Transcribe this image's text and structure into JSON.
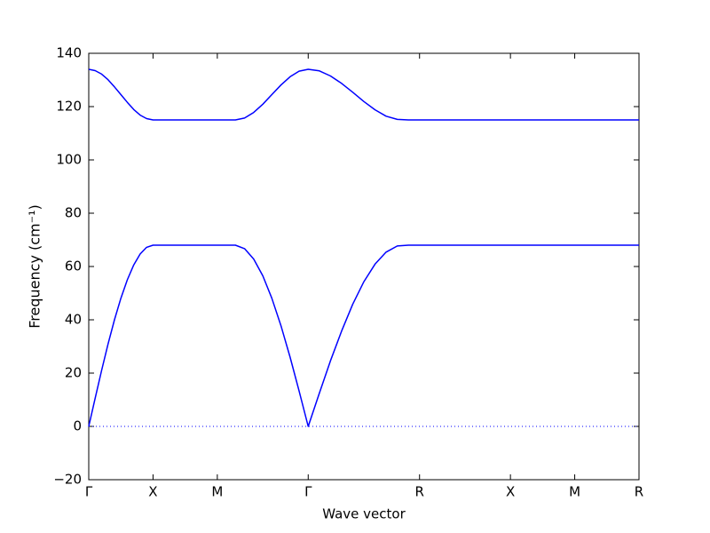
{
  "chart_data": {
    "type": "line",
    "xlabel": "Wave vector",
    "ylabel": "Frequency (cm⁻¹)",
    "x": [
      0,
      0.05,
      0.1,
      0.15,
      0.2,
      0.25,
      0.3,
      0.35,
      0.4,
      0.45,
      0.5,
      1.0,
      1.071,
      1.141,
      1.212,
      1.283,
      1.354,
      1.424,
      1.495,
      1.566,
      1.636,
      1.707,
      1.794,
      1.88,
      1.967,
      2.053,
      2.14,
      2.227,
      2.313,
      2.4,
      2.486,
      2.573,
      3.28,
      3.78,
      4.28
    ],
    "series": [
      {
        "color": "#0000ff",
        "values": [
          0,
          10.6,
          21.0,
          30.9,
          40.0,
          48.1,
          55.0,
          60.6,
          64.7,
          67.2,
          68,
          68,
          68,
          68,
          66.7,
          62.8,
          56.5,
          48.1,
          37.8,
          26.0,
          13.3,
          0,
          12.5,
          24.6,
          35.8,
          45.8,
          54.3,
          60.9,
          65.4,
          67.7,
          68,
          68,
          68,
          68,
          68
        ]
      },
      {
        "color": "#0000ff",
        "values": [
          134,
          133.5,
          132.2,
          130.1,
          127.4,
          124.5,
          121.6,
          118.9,
          116.8,
          115.5,
          115,
          115,
          115,
          115,
          115.7,
          117.8,
          120.9,
          124.5,
          128.1,
          131.2,
          133.3,
          134,
          133.4,
          131.5,
          128.7,
          125.4,
          121.9,
          118.8,
          116.4,
          115.2,
          115,
          115,
          115,
          115,
          115
        ]
      }
    ],
    "hlines": [
      0
    ],
    "hline_color": "#0000ff",
    "xlim": [
      0,
      4.28
    ],
    "ylim": [
      -20,
      140
    ],
    "xticks": [
      {
        "value": 0,
        "label": "Γ"
      },
      {
        "value": 0.5,
        "label": "X"
      },
      {
        "value": 1.0,
        "label": "M"
      },
      {
        "value": 1.707,
        "label": "Γ"
      },
      {
        "value": 2.573,
        "label": "R"
      },
      {
        "value": 3.28,
        "label": "X"
      },
      {
        "value": 3.78,
        "label": "M"
      },
      {
        "value": 4.28,
        "label": "R"
      }
    ],
    "yticks": [
      {
        "value": -20,
        "label": "−20"
      },
      0,
      20,
      40,
      60,
      80,
      100,
      120,
      140
    ]
  }
}
